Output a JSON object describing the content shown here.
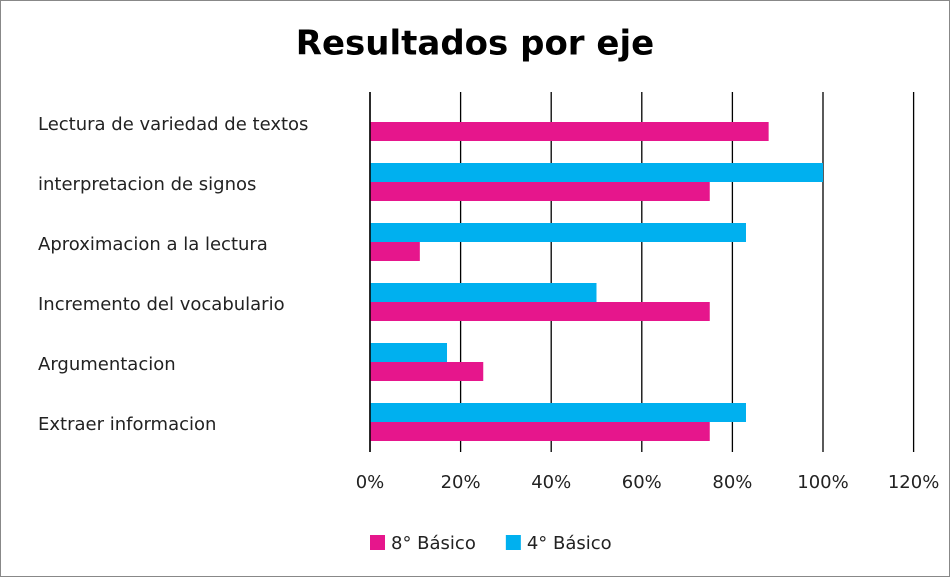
{
  "chart_data": {
    "type": "hbar",
    "title": "Resultados por eje",
    "categories": [
      "Lectura de variedad de textos",
      "interpretacion de signos",
      "Aproximacion a la lectura",
      "Incremento del vocabulario",
      "Argumentacion",
      "Extraer  informacion"
    ],
    "series": [
      {
        "name": "8° Básico",
        "color": "#e6168c",
        "values": [
          88,
          75,
          11,
          75,
          25,
          75
        ]
      },
      {
        "name": "4° Básico",
        "color": "#00b0ef",
        "values": [
          null,
          100,
          83,
          50,
          17,
          83
        ]
      }
    ],
    "xlim": [
      0,
      120
    ],
    "xticks": [
      {
        "value": 0,
        "label": "0%"
      },
      {
        "value": 20,
        "label": "20%"
      },
      {
        "value": 40,
        "label": "40%"
      },
      {
        "value": 60,
        "label": "60%"
      },
      {
        "value": 80,
        "label": "80%"
      },
      {
        "value": 100,
        "label": "100%"
      },
      {
        "value": 120,
        "label": "120%"
      }
    ],
    "grid": true,
    "legend": "bottom"
  }
}
